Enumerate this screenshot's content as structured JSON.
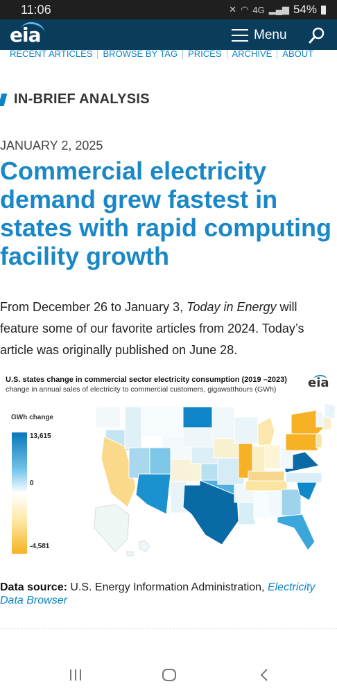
{
  "status_bar": {
    "time": "11:06",
    "network": "4G",
    "battery": "54%"
  },
  "header": {
    "logo": "eia",
    "menu_label": "Menu"
  },
  "subnav": [
    "RECENT ARTICLES",
    "BROWSE BY TAG",
    "PRICES",
    "ARCHIVE",
    "ABOUT"
  ],
  "section_label": "IN-BRIEF ANALYSIS",
  "article": {
    "date": "JANUARY 2, 2025",
    "title": "Commercial electricity demand grew fastest in states with rapid computing facility growth",
    "intro_1": "From December 26 to January 3, ",
    "intro_italic": "Today in Energy",
    "intro_2": " will feature some of our favorite articles from 2024. Today’s article was originally published on June 28."
  },
  "figure": {
    "title": "U.S. states change in commercial sector electricity consumption (2019    –2023)",
    "subtitle": "change in annual sales of electricity to commercial customers, gigawatthours (GWh)",
    "logo": "eia",
    "legend_title": "GWh change",
    "legend_max": "13,615",
    "legend_mid": "0",
    "legend_min": "-4,581",
    "colors": {
      "max": "#0a76b8",
      "mid": "#ffffff",
      "min": "#f6b224"
    }
  },
  "data_source": {
    "label": "Data source:",
    "text": " U.S. Energy Information Administration, ",
    "link": "Electricity Data Browser"
  }
}
